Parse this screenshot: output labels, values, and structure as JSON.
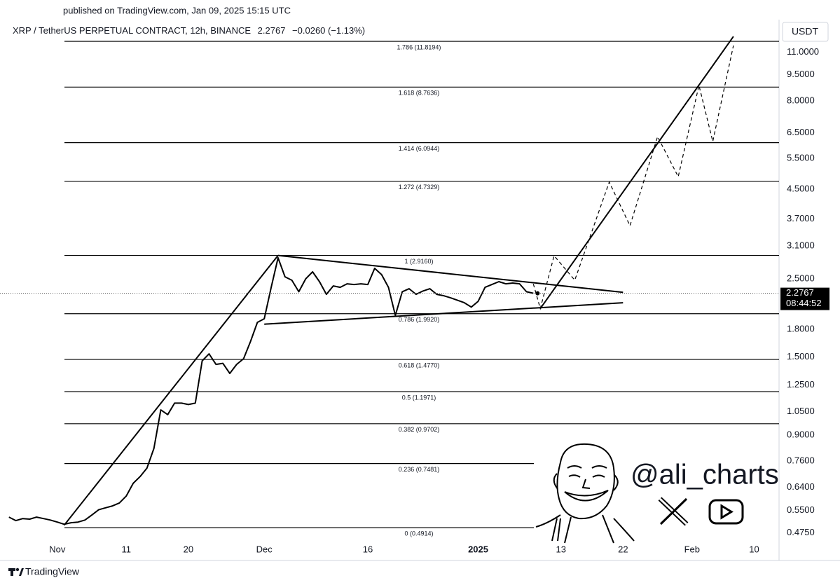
{
  "chart_data": {
    "type": "line",
    "published": "published on TradingView.com, Jan 09, 2025 15:15 UTC",
    "title": "XRP / TetherUS PERPETUAL CONTRACT, 12h, BINANCE",
    "last_price": 2.2767,
    "change": {
      "value": -0.026,
      "label": "−0.0260 (−1.13%)"
    },
    "currency": "USDT",
    "countdown": "08:44:52",
    "color": "#000000",
    "log_scale": true,
    "grid": false,
    "xlim": [
      "2024-10-24",
      "2025-02-13"
    ],
    "xticks": [
      {
        "value": "2024-11-01",
        "label": "Nov"
      },
      {
        "value": "2024-11-11",
        "label": "11"
      },
      {
        "value": "2024-11-20",
        "label": "20"
      },
      {
        "value": "2024-12-01",
        "label": "Dec"
      },
      {
        "value": "2024-12-16",
        "label": "16"
      },
      {
        "value": "2025-01-01",
        "label": "2025"
      },
      {
        "value": "2025-01-13",
        "label": "13"
      },
      {
        "value": "2025-01-22",
        "label": "22"
      },
      {
        "value": "2025-02-01",
        "label": "Feb"
      },
      {
        "value": "2025-02-10",
        "label": "10"
      }
    ],
    "ylim": [
      0.445,
      13.5
    ],
    "yticks": [
      {
        "value": 11,
        "label": "11.0000"
      },
      {
        "value": 9.5,
        "label": "9.5000"
      },
      {
        "value": 8,
        "label": "8.0000"
      },
      {
        "value": 6.5,
        "label": "6.5000"
      },
      {
        "value": 5.5,
        "label": "5.5000"
      },
      {
        "value": 4.5,
        "label": "4.5000"
      },
      {
        "value": 3.7,
        "label": "3.7000"
      },
      {
        "value": 3.1,
        "label": "3.1000"
      },
      {
        "value": 2.5,
        "label": "2.5000"
      },
      {
        "value": 1.8,
        "label": "1.8000"
      },
      {
        "value": 1.5,
        "label": "1.5000"
      },
      {
        "value": 1.25,
        "label": "1.2500"
      },
      {
        "value": 1.05,
        "label": "1.0500"
      },
      {
        "value": 0.9,
        "label": "0.9000"
      },
      {
        "value": 0.76,
        "label": "0.7600"
      },
      {
        "value": 0.64,
        "label": "0.6400"
      },
      {
        "value": 0.55,
        "label": "0.5500"
      },
      {
        "value": 0.475,
        "label": "0.4750"
      }
    ],
    "x": [
      "2024-10-25",
      "2024-10-26",
      "2024-10-27",
      "2024-10-28",
      "2024-10-29",
      "2024-10-30",
      "2024-10-31",
      "2024-11-01",
      "2024-11-02",
      "2024-11-03",
      "2024-11-04",
      "2024-11-05",
      "2024-11-06",
      "2024-11-07",
      "2024-11-08",
      "2024-11-09",
      "2024-11-10",
      "2024-11-11",
      "2024-11-12",
      "2024-11-13",
      "2024-11-14",
      "2024-11-15",
      "2024-11-16",
      "2024-11-17",
      "2024-11-18",
      "2024-11-19",
      "2024-11-20",
      "2024-11-21",
      "2024-11-22",
      "2024-11-23",
      "2024-11-24",
      "2024-11-25",
      "2024-11-26",
      "2024-11-27",
      "2024-11-28",
      "2024-11-29",
      "2024-11-30",
      "2024-12-01",
      "2024-12-02",
      "2024-12-03",
      "2024-12-04",
      "2024-12-05",
      "2024-12-06",
      "2024-12-07",
      "2024-12-08",
      "2024-12-09",
      "2024-12-10",
      "2024-12-11",
      "2024-12-12",
      "2024-12-13",
      "2024-12-14",
      "2024-12-15",
      "2024-12-16",
      "2024-12-17",
      "2024-12-18",
      "2024-12-19",
      "2024-12-20",
      "2024-12-21",
      "2024-12-22",
      "2024-12-23",
      "2024-12-24",
      "2024-12-25",
      "2024-12-26",
      "2024-12-27",
      "2024-12-28",
      "2024-12-29",
      "2024-12-30",
      "2024-12-31",
      "2025-01-01",
      "2025-01-02",
      "2025-01-03",
      "2025-01-04",
      "2025-01-05",
      "2025-01-06",
      "2025-01-07",
      "2025-01-08",
      "2025-01-09"
    ],
    "values": [
      0.527,
      0.515,
      0.522,
      0.52,
      0.527,
      0.522,
      0.517,
      0.51,
      0.503,
      0.508,
      0.51,
      0.517,
      0.534,
      0.553,
      0.56,
      0.567,
      0.578,
      0.605,
      0.657,
      0.687,
      0.726,
      0.826,
      1.062,
      1.03,
      1.11,
      1.11,
      1.1,
      1.11,
      1.464,
      1.532,
      1.43,
      1.44,
      1.348,
      1.43,
      1.484,
      1.66,
      1.883,
      1.927,
      2.367,
      2.87,
      2.536,
      2.479,
      2.3,
      2.501,
      2.619,
      2.457,
      2.261,
      2.389,
      2.367,
      2.422,
      2.411,
      2.422,
      2.411,
      2.68,
      2.572,
      2.367,
      1.97,
      2.3,
      2.346,
      2.261,
      2.31,
      2.346,
      2.261,
      2.241,
      2.21,
      2.175,
      2.14,
      2.08,
      2.16,
      2.367,
      2.411,
      2.457,
      2.422,
      2.434,
      2.422,
      2.3,
      2.2767
    ],
    "levels": [
      {
        "value": 11.8194,
        "label": "1.786 (11.8194)"
      },
      {
        "value": 8.7636,
        "label": "1.618 (8.7636)"
      },
      {
        "value": 6.0944,
        "label": "1.414 (6.0944)"
      },
      {
        "value": 4.7329,
        "label": "1.272 (4.7329)"
      },
      {
        "value": 2.916,
        "label": "1 (2.9160)"
      },
      {
        "value": 1.992,
        "label": "0.786 (1.9920)"
      },
      {
        "value": 1.477,
        "label": "0.618 (1.4770)"
      },
      {
        "value": 1.1971,
        "label": "0.5 (1.1971)"
      },
      {
        "value": 0.9702,
        "label": "0.382 (0.9702)"
      },
      {
        "value": 0.7481,
        "label": "0.236 (0.7481)"
      },
      {
        "value": 0.4914,
        "label": "0 (0.4914)"
      }
    ],
    "trendlines": [
      {
        "x": [
          "2024-11-02",
          "2024-12-03"
        ],
        "values": [
          0.5,
          2.916
        ]
      },
      {
        "x": [
          "2024-12-03",
          "2025-01-22"
        ],
        "values": [
          2.916,
          2.29
        ]
      },
      {
        "x": [
          "2024-12-01",
          "2025-01-22"
        ],
        "values": [
          1.86,
          2.14
        ]
      },
      {
        "x": [
          "2025-01-10",
          "2025-02-07"
        ],
        "values": [
          2.06,
          12.2
        ]
      }
    ],
    "projection": {
      "x": [
        "2025-01-09",
        "2025-01-10",
        "2025-01-12",
        "2025-01-15",
        "2025-01-20",
        "2025-01-23",
        "2025-01-27",
        "2025-01-30",
        "2025-02-02",
        "2025-02-04",
        "2025-02-07"
      ],
      "values": [
        2.42,
        2.06,
        2.91,
        2.48,
        4.71,
        3.54,
        6.34,
        4.88,
        8.86,
        6.14,
        11.5
      ]
    },
    "watermark": "@ali_charts",
    "footer": "TradingView"
  }
}
